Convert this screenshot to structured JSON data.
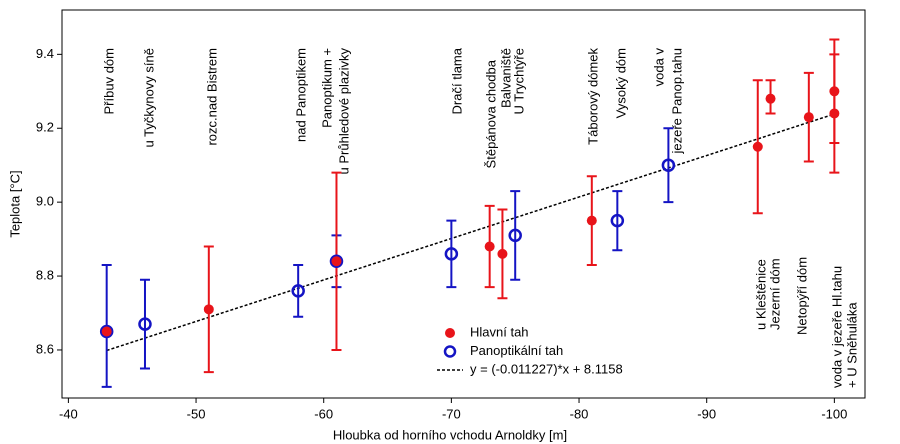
{
  "chart_data": {
    "type": "scatter",
    "xlabel": "Hloubka od horního vchodu Arnoldky [m]",
    "ylabel": "Teplota [°C]",
    "xlim": [
      -39.5,
      -102.4
    ],
    "ylim": [
      8.47,
      9.52
    ],
    "xticks": [
      -40,
      -50,
      -60,
      -70,
      -80,
      -90,
      -100
    ],
    "yticks": [
      8.6,
      8.8,
      {
        "value": 9,
        "label": "9.0"
      },
      9.2,
      9.4
    ],
    "series": [
      {
        "name": "Panoptikální tah",
        "color": "#1414c4",
        "marker": "open",
        "x": [
          -43,
          -46,
          -58,
          -61,
          -70,
          -75,
          -83,
          -87
        ],
        "values": [
          8.65,
          8.67,
          8.76,
          8.84,
          8.86,
          8.91,
          8.95,
          9.1
        ],
        "error_minus": [
          0.15,
          0.12,
          0.07,
          0.07,
          0.09,
          0.12,
          0.08,
          0.1
        ],
        "error_plus": [
          0.18,
          0.12,
          0.07,
          0.07,
          0.09,
          0.12,
          0.08,
          0.1
        ]
      },
      {
        "name": "Hlavní tah",
        "color": "#e8141a",
        "marker": "filled",
        "x": [
          -43,
          -51,
          -61,
          -73,
          -74,
          -81,
          -94,
          -95,
          -98,
          -100,
          -100
        ],
        "values": [
          8.65,
          8.71,
          8.84,
          8.88,
          8.86,
          8.95,
          9.15,
          9.28,
          9.23,
          9.3,
          9.24
        ],
        "error_minus": [
          0,
          0.17,
          0.24,
          0.11,
          0.12,
          0.12,
          0.18,
          0.04,
          0.12,
          0.14,
          0.16
        ],
        "error_plus": [
          0,
          0.17,
          0.24,
          0.11,
          0.12,
          0.12,
          0.18,
          0.05,
          0.12,
          0.14,
          0.16
        ]
      },
      {
        "name": "y = (-0.011227)*x + 8.1158",
        "color": "#000000",
        "marker": "dashed-line",
        "x": [
          -43,
          -100
        ],
        "values": [
          8.5986,
          9.2385
        ]
      }
    ],
    "legend_order": [
      1,
      0,
      2
    ],
    "annotations": [
      "Příbuv dóm",
      "u Tyčkynovy síně",
      "rozc.nad Bistrem",
      "nad Panoptikem",
      "Panoptikum +",
      "u Průhledové plazivky",
      "Dračí tlama",
      "Štěpánova chodba",
      "Balvaniště",
      "U Trychtýře",
      "Táborový dómek",
      "Vysoký dóm",
      "voda v",
      "jezeře Panop.tahu",
      "u Kleštěnice",
      "Jezerní dóm",
      "Netopýří dóm",
      "voda v jezeře Hl.tahu",
      "+ U Sněhuláka"
    ]
  }
}
